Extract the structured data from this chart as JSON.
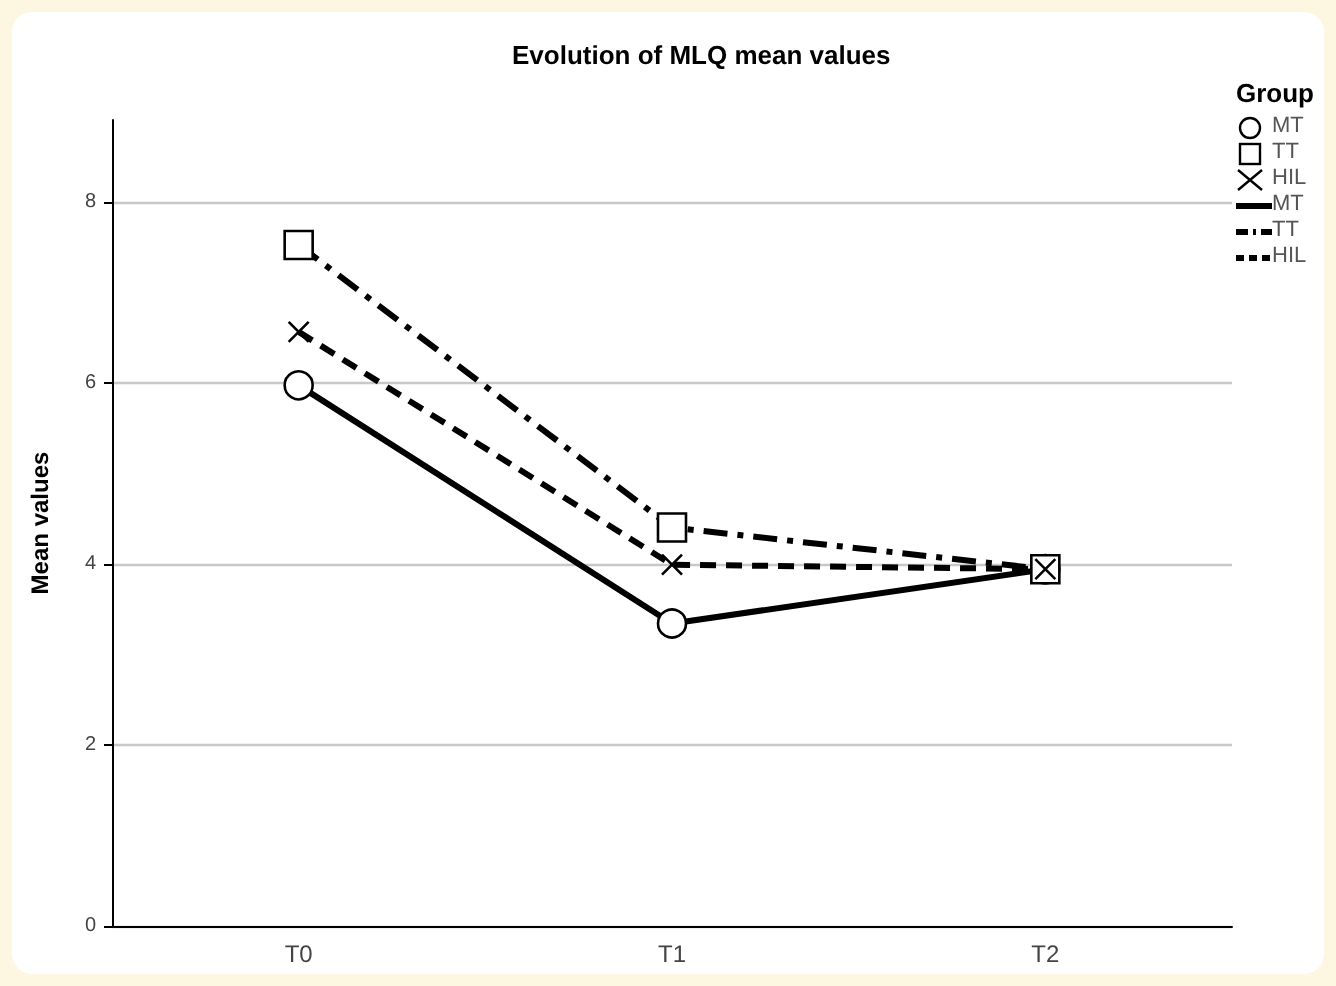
{
  "chart_data": {
    "type": "line",
    "title": "Evolution of MLQ mean values",
    "ylabel": "Mean values",
    "legend_title": "Group",
    "categories": [
      "T0",
      "T1",
      "T2"
    ],
    "series": [
      {
        "name": "MT",
        "color": "#000000",
        "marker": "circle",
        "line_style": "solid",
        "values": [
          5.97,
          3.34,
          3.94
        ]
      },
      {
        "name": "TT",
        "color": "#000000",
        "marker": "square",
        "line_style": "dashdot",
        "values": [
          7.52,
          4.4,
          3.94
        ]
      },
      {
        "name": "HIL",
        "color": "#000000",
        "marker": "cross",
        "line_style": "dashed",
        "values": [
          6.56,
          3.99,
          3.94
        ]
      }
    ],
    "ylim": [
      0,
      8.9
    ],
    "yticks": [
      0,
      2,
      4,
      6,
      8
    ],
    "grid": "y",
    "legend": "top right"
  }
}
